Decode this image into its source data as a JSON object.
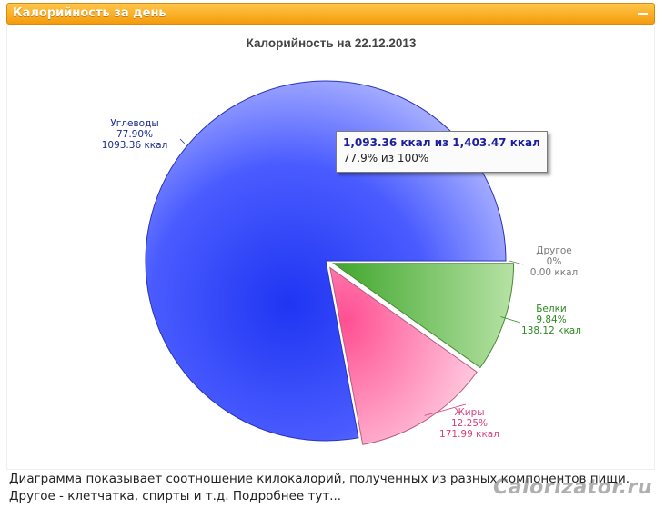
{
  "panel": {
    "title": "Калорийность за день"
  },
  "chart_data": {
    "type": "pie",
    "title": "Калорийность на 22.12.2013",
    "total": 1403.47,
    "slices": [
      {
        "name": "Углеводы",
        "percent_label": "77.90%",
        "kcal_label": "1093.36 ккал",
        "value": 1093.36,
        "color": "#5b6cff",
        "label_color": "#1b2a8f",
        "exploded": false
      },
      {
        "name": "Другое",
        "percent_label": "0%",
        "kcal_label": "0.00 ккал",
        "value": 0,
        "color": "#aaaaaa",
        "label_color": "#7a7a7a",
        "exploded": true
      },
      {
        "name": "Белки",
        "percent_label": "9.84%",
        "kcal_label": "138.12 ккал",
        "value": 138.12,
        "color": "#4fb33a",
        "label_color": "#2f8a22",
        "exploded": true
      },
      {
        "name": "Жиры",
        "percent_label": "12.25%",
        "kcal_label": "171.99 ккал",
        "value": 171.99,
        "color": "#ff6fa6",
        "label_color": "#d8407a",
        "exploded": true
      }
    ]
  },
  "tooltip": {
    "line1": "1,093.36 ккал из 1,403.47 ккал",
    "line2": "77.9% из 100%"
  },
  "caption": {
    "line1": "Диаграмма показывает соотношение килокалорий, полученных из разных компонентов пищи.",
    "line2": "Другое - клетчатка, спирты и т.д.",
    "more": "Подробнее тут..."
  },
  "watermark": "Calorizator.ru"
}
